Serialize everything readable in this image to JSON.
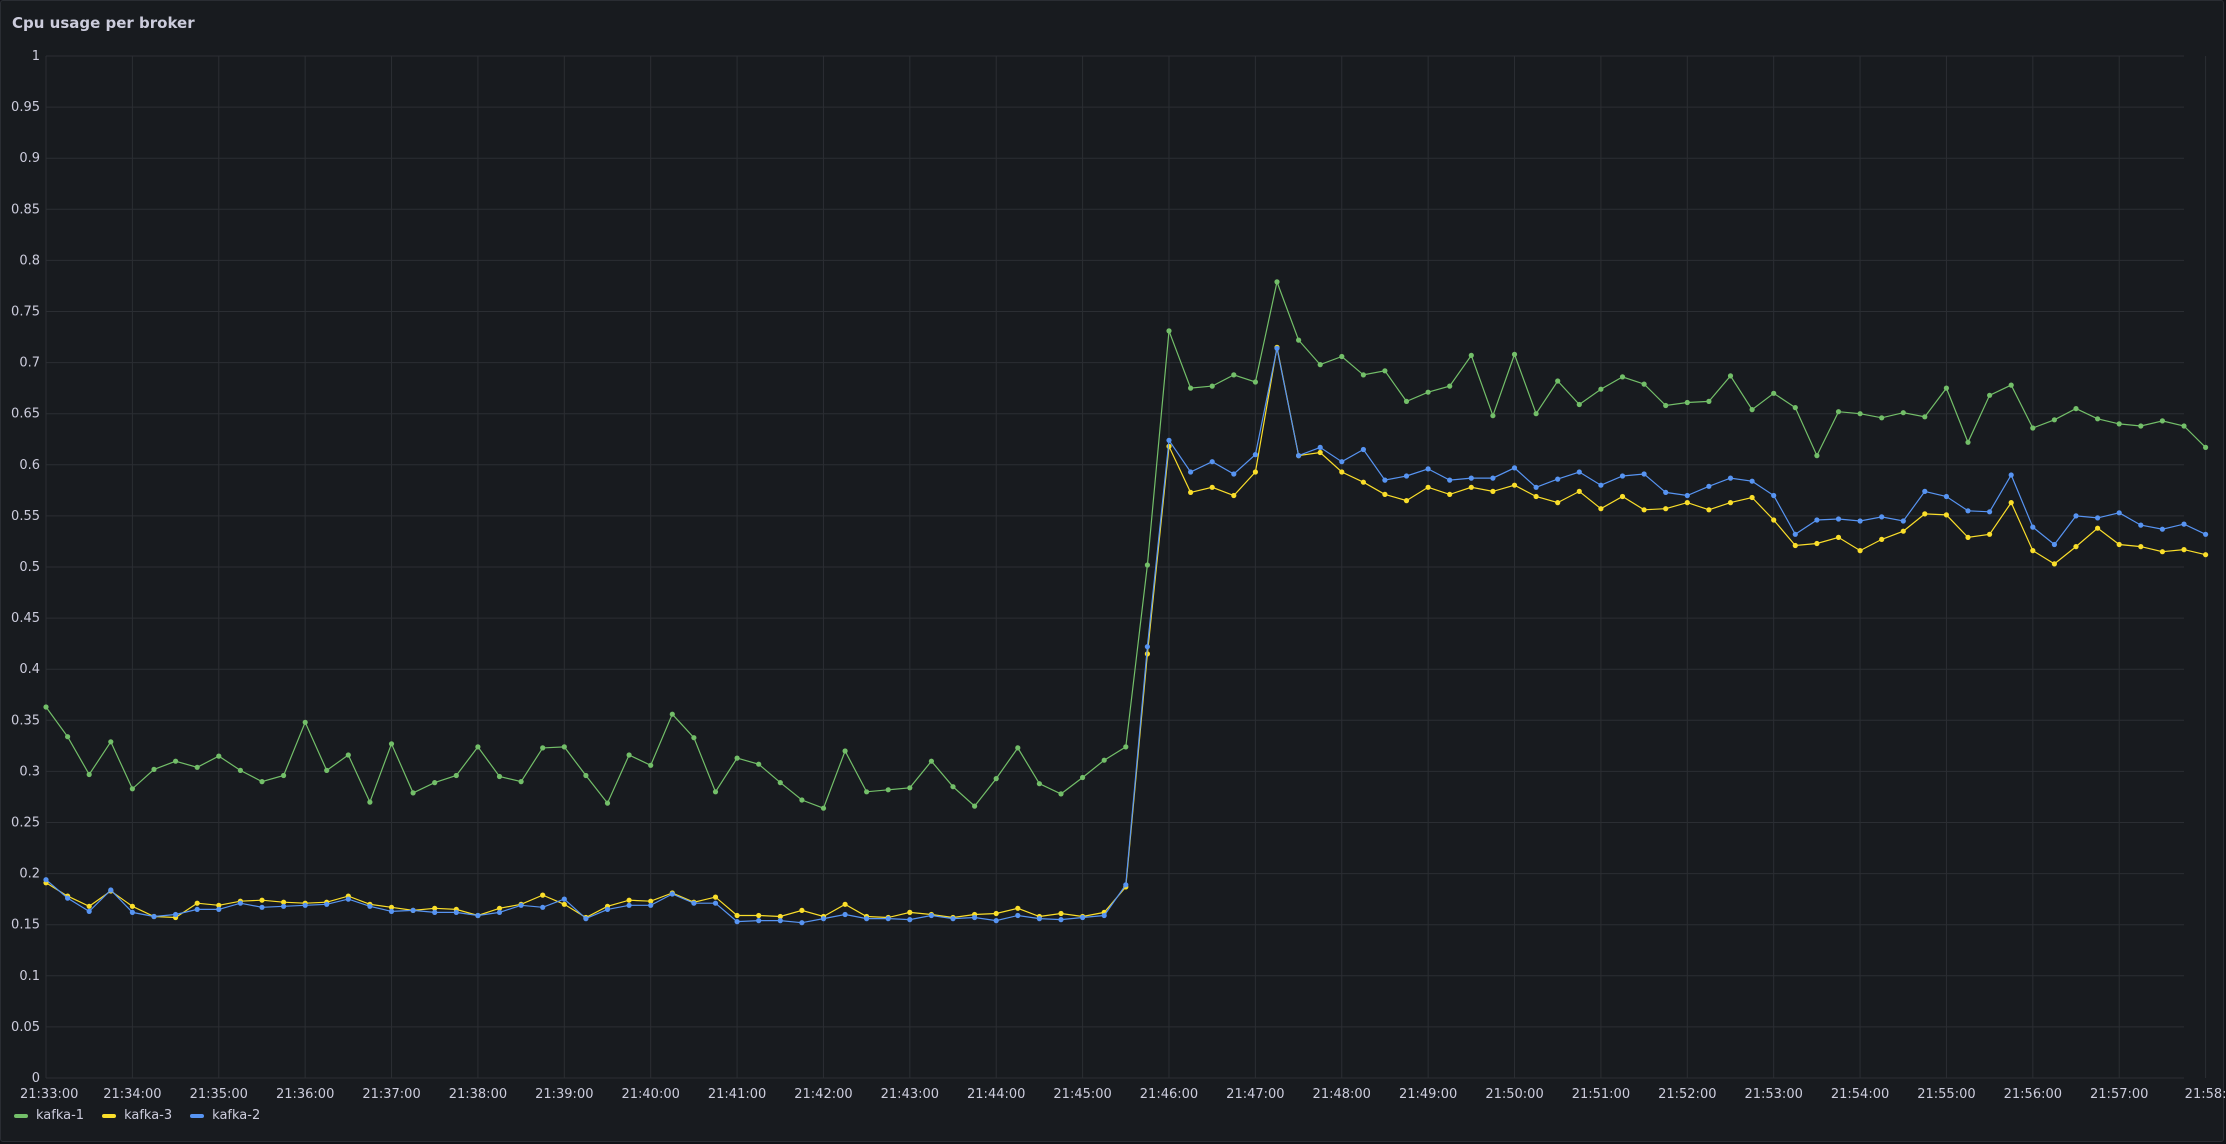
{
  "panel": {
    "title": "Cpu usage per broker"
  },
  "chart_data": {
    "type": "line",
    "title": "Cpu usage per broker",
    "ylim": [
      0,
      1
    ],
    "y_ticks": [
      "0",
      "0.05",
      "0.1",
      "0.15",
      "0.2",
      "0.25",
      "0.3",
      "0.35",
      "0.4",
      "0.45",
      "0.5",
      "0.55",
      "0.6",
      "0.65",
      "0.7",
      "0.75",
      "0.8",
      "0.85",
      "0.9",
      "0.95",
      "1"
    ],
    "x_ticks": [
      "21:33:00",
      "21:34:00",
      "21:35:00",
      "21:36:00",
      "21:37:00",
      "21:38:00",
      "21:39:00",
      "21:40:00",
      "21:41:00",
      "21:42:00",
      "21:43:00",
      "21:44:00",
      "21:45:00",
      "21:46:00",
      "21:47:00",
      "21:48:00",
      "21:49:00",
      "21:50:00",
      "21:51:00",
      "21:52:00",
      "21:53:00",
      "21:54:00",
      "21:55:00",
      "21:56:00",
      "21:57:00",
      "21:58:"
    ],
    "x_range_seconds_after_21:33:00": [
      0,
      1485
    ],
    "sample_interval_seconds": 15,
    "grid": true,
    "legend_position": "bottom-left",
    "series": [
      {
        "name": "kafka-1",
        "color": "#73bf69",
        "values": [
          0.363,
          0.334,
          0.297,
          0.329,
          0.283,
          0.302,
          0.31,
          0.304,
          0.315,
          0.301,
          0.29,
          0.296,
          0.348,
          0.301,
          0.316,
          0.27,
          0.327,
          0.279,
          0.289,
          0.296,
          0.324,
          0.295,
          0.29,
          0.323,
          0.324,
          0.296,
          0.269,
          0.316,
          0.306,
          0.356,
          0.333,
          0.28,
          0.313,
          0.307,
          0.289,
          0.272,
          0.264,
          0.32,
          0.28,
          0.282,
          0.284,
          0.31,
          0.285,
          0.266,
          0.293,
          0.323,
          0.288,
          0.278,
          0.294,
          0.311,
          0.324,
          0.502,
          0.731,
          0.675,
          0.677,
          0.688,
          0.681,
          0.779,
          0.722,
          0.698,
          0.706,
          0.688,
          0.692,
          0.662,
          0.671,
          0.677,
          0.707,
          0.648,
          0.708,
          0.65,
          0.682,
          0.659,
          0.674,
          0.686,
          0.679,
          0.658,
          0.661,
          0.662,
          0.687,
          0.654,
          0.67,
          0.656,
          0.609,
          0.652,
          0.65,
          0.646,
          0.651,
          0.647,
          0.675,
          0.622,
          0.668,
          0.678,
          0.636,
          0.644,
          0.655,
          0.645,
          0.64,
          0.638,
          0.643,
          0.638,
          0.617
        ]
      },
      {
        "name": "kafka-3",
        "color": "#fade2a",
        "values": [
          0.191,
          0.178,
          0.168,
          0.183,
          0.168,
          0.158,
          0.157,
          0.171,
          0.169,
          0.173,
          0.174,
          0.172,
          0.171,
          0.172,
          0.178,
          0.17,
          0.167,
          0.164,
          0.166,
          0.165,
          0.159,
          0.166,
          0.17,
          0.179,
          0.17,
          0.157,
          0.168,
          0.174,
          0.173,
          0.181,
          0.172,
          0.177,
          0.159,
          0.159,
          0.158,
          0.164,
          0.158,
          0.17,
          0.158,
          0.157,
          0.162,
          0.16,
          0.157,
          0.16,
          0.161,
          0.166,
          0.158,
          0.161,
          0.158,
          0.162,
          0.187,
          0.415,
          0.618,
          0.573,
          0.578,
          0.57,
          0.593,
          0.715,
          0.609,
          0.612,
          0.593,
          0.583,
          0.571,
          0.565,
          0.578,
          0.571,
          0.578,
          0.574,
          0.58,
          0.569,
          0.563,
          0.574,
          0.557,
          0.569,
          0.556,
          0.557,
          0.563,
          0.556,
          0.563,
          0.568,
          0.546,
          0.521,
          0.523,
          0.529,
          0.516,
          0.527,
          0.535,
          0.552,
          0.551,
          0.529,
          0.532,
          0.563,
          0.516,
          0.503,
          0.52,
          0.538,
          0.522,
          0.52,
          0.515,
          0.517,
          0.512
        ]
      },
      {
        "name": "kafka-2",
        "color": "#5794f2",
        "values": [
          0.194,
          0.176,
          0.163,
          0.184,
          0.162,
          0.158,
          0.16,
          0.165,
          0.165,
          0.171,
          0.167,
          0.168,
          0.169,
          0.17,
          0.175,
          0.168,
          0.163,
          0.164,
          0.162,
          0.162,
          0.159,
          0.162,
          0.169,
          0.167,
          0.175,
          0.156,
          0.165,
          0.169,
          0.169,
          0.18,
          0.171,
          0.171,
          0.153,
          0.154,
          0.154,
          0.152,
          0.156,
          0.16,
          0.156,
          0.156,
          0.155,
          0.159,
          0.156,
          0.157,
          0.154,
          0.159,
          0.156,
          0.155,
          0.157,
          0.159,
          0.189,
          0.422,
          0.624,
          0.593,
          0.603,
          0.591,
          0.61,
          0.714,
          0.609,
          0.617,
          0.603,
          0.615,
          0.585,
          0.589,
          0.596,
          0.585,
          0.587,
          0.587,
          0.597,
          0.578,
          0.586,
          0.593,
          0.58,
          0.589,
          0.591,
          0.573,
          0.57,
          0.579,
          0.587,
          0.584,
          0.57,
          0.532,
          0.546,
          0.547,
          0.545,
          0.549,
          0.545,
          0.574,
          0.569,
          0.555,
          0.554,
          0.59,
          0.539,
          0.522,
          0.55,
          0.548,
          0.553,
          0.541,
          0.537,
          0.542,
          0.532
        ]
      }
    ]
  }
}
